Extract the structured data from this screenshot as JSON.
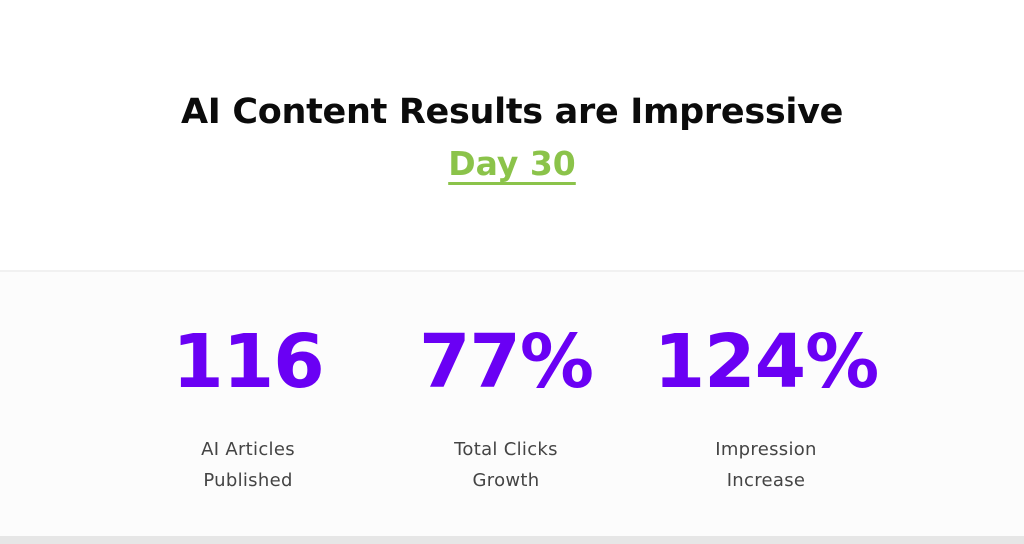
{
  "header": {
    "title": "AI Content Results are Impressive",
    "subtitle_link": "Day 30"
  },
  "stats": [
    {
      "value": "116",
      "label_line1": "AI Articles",
      "label_line2": "Published"
    },
    {
      "value": "77%",
      "label_line1": "Total Clicks",
      "label_line2": "Growth"
    },
    {
      "value": "124%",
      "label_line1": "Impression",
      "label_line2": "Increase"
    }
  ],
  "colors": {
    "title": "#0b0b0b",
    "accent_green": "#8bc34a",
    "stat_purple": "#6a00f4",
    "label_gray": "#444444"
  }
}
